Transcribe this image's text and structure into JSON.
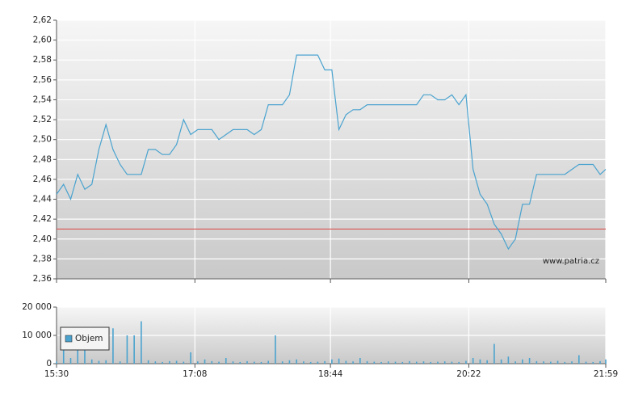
{
  "chart_data": [
    {
      "type": "line",
      "x": [
        "15:30",
        "15:35",
        "15:40",
        "15:45",
        "15:50",
        "15:55",
        "16:00",
        "16:05",
        "16:10",
        "16:15",
        "16:20",
        "16:25",
        "16:30",
        "16:35",
        "16:40",
        "16:45",
        "16:50",
        "16:55",
        "17:00",
        "17:05",
        "17:10",
        "17:15",
        "17:20",
        "17:25",
        "17:30",
        "17:35",
        "17:40",
        "17:45",
        "17:50",
        "17:55",
        "18:00",
        "18:05",
        "18:10",
        "18:15",
        "18:20",
        "18:25",
        "18:30",
        "18:35",
        "18:40",
        "18:45",
        "18:50",
        "18:55",
        "19:00",
        "19:05",
        "19:10",
        "19:15",
        "19:20",
        "19:25",
        "19:30",
        "19:35",
        "19:40",
        "19:45",
        "19:50",
        "19:55",
        "20:00",
        "20:05",
        "20:10",
        "20:15",
        "20:20",
        "20:25",
        "20:30",
        "20:35",
        "20:40",
        "20:45",
        "20:50",
        "20:55",
        "21:00",
        "21:05",
        "21:10",
        "21:15",
        "21:20",
        "21:25",
        "21:30",
        "21:35",
        "21:40",
        "21:45",
        "21:50",
        "21:55",
        "21:59"
      ],
      "values": [
        2.445,
        2.455,
        2.44,
        2.465,
        2.45,
        2.455,
        2.49,
        2.515,
        2.49,
        2.475,
        2.465,
        2.465,
        2.465,
        2.49,
        2.49,
        2.485,
        2.485,
        2.495,
        2.52,
        2.505,
        2.51,
        2.51,
        2.51,
        2.5,
        2.505,
        2.51,
        2.51,
        2.51,
        2.505,
        2.51,
        2.535,
        2.535,
        2.535,
        2.545,
        2.585,
        2.585,
        2.585,
        2.585,
        2.57,
        2.57,
        2.51,
        2.525,
        2.53,
        2.53,
        2.535,
        2.535,
        2.535,
        2.535,
        2.535,
        2.535,
        2.535,
        2.535,
        2.545,
        2.545,
        2.54,
        2.54,
        2.545,
        2.535,
        2.545,
        2.47,
        2.445,
        2.435,
        2.415,
        2.405,
        2.39,
        2.4,
        2.435,
        2.435,
        2.465,
        2.465,
        2.465,
        2.465,
        2.465,
        2.47,
        2.475,
        2.475,
        2.475,
        2.465,
        2.47
      ],
      "color": "#4aa3cf",
      "ylim": [
        2.36,
        2.62
      ],
      "yticks": [
        {
          "value": 2.36,
          "label": "2,36"
        },
        {
          "value": 2.38,
          "label": "2,38"
        },
        {
          "value": 2.4,
          "label": "2,40"
        },
        {
          "value": 2.42,
          "label": "2,42"
        },
        {
          "value": 2.44,
          "label": "2,44"
        },
        {
          "value": 2.46,
          "label": "2,46"
        },
        {
          "value": 2.48,
          "label": "2,48"
        },
        {
          "value": 2.5,
          "label": "2,50"
        },
        {
          "value": 2.52,
          "label": "2,52"
        },
        {
          "value": 2.54,
          "label": "2,54"
        },
        {
          "value": 2.56,
          "label": "2,56"
        },
        {
          "value": 2.58,
          "label": "2,58"
        },
        {
          "value": 2.6,
          "label": "2,60"
        },
        {
          "value": 2.62,
          "label": "2,62"
        }
      ],
      "xlim": [
        "15:30",
        "21:59"
      ],
      "xticks": [
        "15:30",
        "17:08",
        "18:44",
        "20:22",
        "21:59"
      ],
      "grid": true,
      "reference_line": {
        "value": 2.41,
        "color": "#d9534f"
      },
      "annotation": "www.patria.cz"
    },
    {
      "type": "bar",
      "x": [
        "15:30",
        "15:35",
        "15:40",
        "15:45",
        "15:50",
        "15:55",
        "16:00",
        "16:05",
        "16:10",
        "16:15",
        "16:20",
        "16:25",
        "16:30",
        "16:35",
        "16:40",
        "16:45",
        "16:50",
        "16:55",
        "17:00",
        "17:05",
        "17:10",
        "17:15",
        "17:20",
        "17:25",
        "17:30",
        "17:35",
        "17:40",
        "17:45",
        "17:50",
        "17:55",
        "18:00",
        "18:05",
        "18:10",
        "18:15",
        "18:20",
        "18:25",
        "18:30",
        "18:35",
        "18:40",
        "18:45",
        "18:50",
        "18:55",
        "19:00",
        "19:05",
        "19:10",
        "19:15",
        "19:20",
        "19:25",
        "19:30",
        "19:35",
        "19:40",
        "19:45",
        "19:50",
        "19:55",
        "20:00",
        "20:05",
        "20:10",
        "20:15",
        "20:20",
        "20:25",
        "20:30",
        "20:35",
        "20:40",
        "20:45",
        "20:50",
        "20:55",
        "21:00",
        "21:05",
        "21:10",
        "21:15",
        "21:20",
        "21:25",
        "21:30",
        "21:35",
        "21:40",
        "21:45",
        "21:50",
        "21:55",
        "21:59"
      ],
      "series": [
        {
          "name": "Objem",
          "color": "#4aa3cf",
          "values": [
            800,
            5000,
            2000,
            10000,
            10000,
            1500,
            1000,
            1200,
            12500,
            800,
            10000,
            10000,
            15000,
            1200,
            800,
            600,
            900,
            1000,
            700,
            4000,
            800,
            1500,
            900,
            700,
            2000,
            800,
            600,
            900,
            700,
            600,
            1000,
            10000,
            800,
            1200,
            1500,
            800,
            600,
            700,
            900,
            1500,
            1800,
            1000,
            800,
            2000,
            900,
            700,
            600,
            800,
            700,
            600,
            900,
            700,
            800,
            600,
            700,
            800,
            700,
            600,
            1000,
            2000,
            1500,
            1200,
            7000,
            1500,
            2500,
            800,
            1500,
            2000,
            900,
            800,
            700,
            1000,
            600,
            800,
            3000,
            700,
            600,
            900,
            1500
          ]
        }
      ],
      "ylim": [
        0,
        20000
      ],
      "yticks": [
        0,
        {
          "value": 10000,
          "label": "10 000"
        },
        {
          "value": 20000,
          "label": "20 000"
        }
      ],
      "xlim": [
        "15:30",
        "21:59"
      ],
      "xticks": [
        "15:30",
        "17:08",
        "18:44",
        "20:22",
        "21:59"
      ],
      "grid": true,
      "legend": "upper left"
    }
  ]
}
